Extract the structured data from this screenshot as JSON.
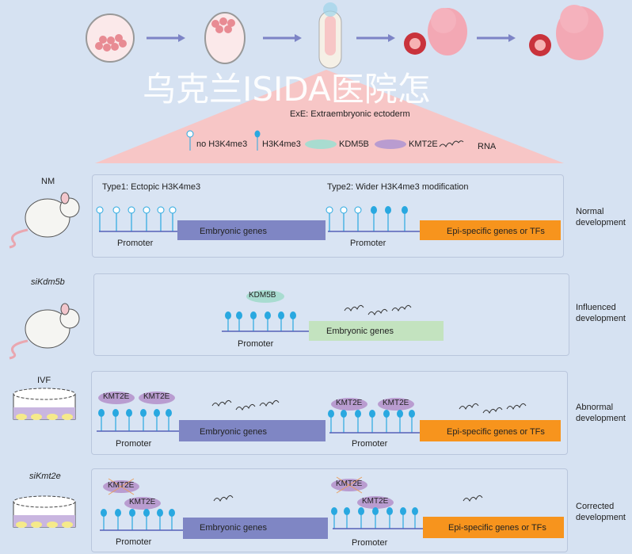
{
  "legend": {
    "title": "ExE: Extraembryonic ectoderm",
    "no_h3k4me3": "no H3K4me3",
    "h3k4me3": "H3K4me3",
    "kdm5b": "KDM5B",
    "kmt2e": "KMT2E",
    "rna": "RNA"
  },
  "colors": {
    "background": "#d6e2f2",
    "triangle": "#f7c6c6",
    "embryonic_box": "#7f86c4",
    "epi_box": "#f7941d",
    "green_box": "#c3e3bf",
    "lollipop": "#29a8e0",
    "kdm5b": "#a8dcd0",
    "kmt2e": "#b99cd0"
  },
  "panels": [
    {
      "condition": "NM",
      "type1": "Type1: Ectopic H3K4me3",
      "type2": "Type2: Wider H3K4me3 modification",
      "promoter": "Promoter",
      "gene1": "Embryonic genes",
      "gene2": "Epi-specific genes or TFs",
      "outcome": "Normal development"
    },
    {
      "condition": "siKdm5b",
      "promoter": "Promoter",
      "gene1": "Embryonic genes",
      "kdm5b": "KDM5B",
      "outcome": "Influenced development"
    },
    {
      "condition": "IVF",
      "promoter": "Promoter",
      "gene1": "Embryonic genes",
      "gene2": "Epi-specific genes or TFs",
      "kmt2e": "KMT2E",
      "outcome": "Abnormal development"
    },
    {
      "condition": "siKmt2e",
      "promoter": "Promoter",
      "gene1": "Embryonic genes",
      "gene2": "Epi-specific genes or TFs",
      "kmt2e": "KMT2E",
      "outcome": "Corrected development"
    }
  ],
  "watermark": "乌克兰ISIDA医院怎"
}
